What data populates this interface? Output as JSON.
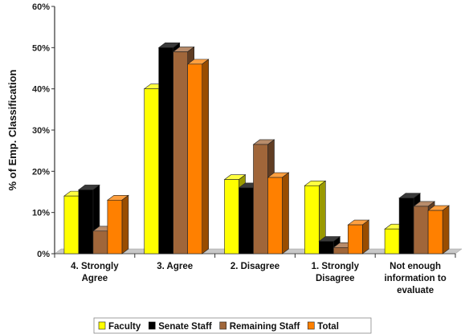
{
  "chart_data": {
    "type": "bar",
    "title": "",
    "xlabel": "",
    "ylabel": "% of Emp. Classification",
    "ylim": [
      0,
      60
    ],
    "yticks": [
      "0%",
      "10%",
      "20%",
      "30%",
      "40%",
      "50%",
      "60%"
    ],
    "categories": [
      [
        "4. Strongly",
        "Agree"
      ],
      [
        "3. Agree"
      ],
      [
        "2. Disagree"
      ],
      [
        "1. Strongly",
        "Disagree"
      ],
      [
        "Not enough",
        "information to",
        "evaluate"
      ]
    ],
    "series": [
      {
        "name": "Faculty",
        "color": "#ffff00",
        "values": [
          14,
          40,
          18,
          16.5,
          6
        ]
      },
      {
        "name": "Senate Staff",
        "color": "#000000",
        "values": [
          15.5,
          50,
          16,
          3,
          13.5
        ]
      },
      {
        "name": "Remaining Staff",
        "color": "#a0663a",
        "values": [
          5.5,
          49,
          26.5,
          1.5,
          11.5
        ]
      },
      {
        "name": "Total",
        "color": "#ff8000",
        "values": [
          13,
          46,
          18.5,
          7,
          10.5
        ]
      }
    ],
    "grid": false,
    "legend_position": "bottom"
  }
}
